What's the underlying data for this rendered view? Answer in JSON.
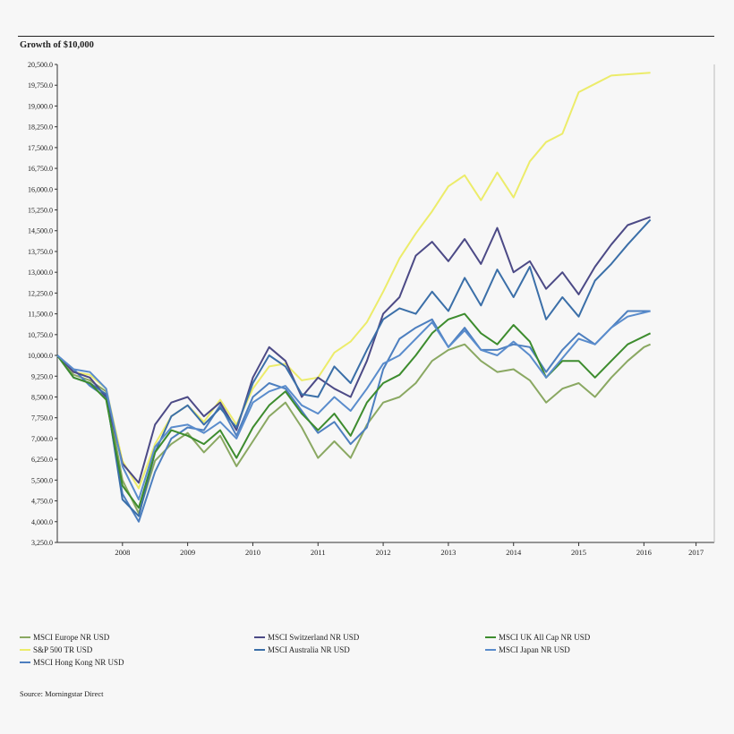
{
  "chart_data": {
    "type": "line",
    "title": "Growth of $10,000",
    "source": "Source: Morningstar Direct",
    "ylim": [
      3250,
      20500
    ],
    "yticks": [
      3250,
      4000,
      4750,
      5500,
      6250,
      7000,
      7750,
      8500,
      9250,
      10000,
      10750,
      11500,
      12250,
      13000,
      13750,
      14500,
      15250,
      16000,
      16750,
      17500,
      18250,
      19000,
      19750,
      20500
    ],
    "ytick_labels": [
      "3,250.0",
      "4,000.0",
      "4,750.0",
      "5,500.0",
      "6,250.0",
      "7,000.0",
      "7,750.0",
      "8,500.0",
      "9,250.0",
      "10,000.0",
      "10,750.0",
      "11,500.0",
      "12,250.0",
      "13,000.0",
      "13,750.0",
      "14,500.0",
      "15,250.0",
      "16,000.0",
      "16,750.0",
      "17,500.0",
      "18,250.0",
      "19,000.0",
      "19,750.0",
      "20,500.0"
    ],
    "xlim": [
      2007.0,
      2017.08
    ],
    "xticks": [
      {
        "label": "2008",
        "x": 2008.0
      },
      {
        "label": "2009",
        "x": 2009.0
      },
      {
        "label": "2010",
        "x": 2010.0
      },
      {
        "label": "2011",
        "x": 2011.0
      },
      {
        "label": "2012",
        "x": 2012.0
      },
      {
        "label": "2013",
        "x": 2013.0
      },
      {
        "label": "2014",
        "x": 2014.0
      },
      {
        "label": "2015",
        "x": 2015.0
      },
      {
        "label": "2016",
        "x": 2016.0
      },
      {
        "label": "2017",
        "x": 2016.8
      }
    ],
    "grid": false,
    "legend_placement": "bottom",
    "series": [
      {
        "name": "MSCI Europe NR USD",
        "color": "#8aa862",
        "points": [
          [
            2007.0,
            10000
          ],
          [
            2007.25,
            9300
          ],
          [
            2007.5,
            9100
          ],
          [
            2007.75,
            8700
          ],
          [
            2008.0,
            5500
          ],
          [
            2008.25,
            4300
          ],
          [
            2008.5,
            6200
          ],
          [
            2008.75,
            6800
          ],
          [
            2009.0,
            7200
          ],
          [
            2009.25,
            6500
          ],
          [
            2009.5,
            7100
          ],
          [
            2009.75,
            6000
          ],
          [
            2010.0,
            6900
          ],
          [
            2010.25,
            7800
          ],
          [
            2010.5,
            8300
          ],
          [
            2010.75,
            7400
          ],
          [
            2011.0,
            6300
          ],
          [
            2011.25,
            6900
          ],
          [
            2011.5,
            6300
          ],
          [
            2011.75,
            7500
          ],
          [
            2012.0,
            8300
          ],
          [
            2012.25,
            8500
          ],
          [
            2012.5,
            9000
          ],
          [
            2012.75,
            9800
          ],
          [
            2013.0,
            10200
          ],
          [
            2013.25,
            10400
          ],
          [
            2013.5,
            9800
          ],
          [
            2013.75,
            9400
          ],
          [
            2014.0,
            9500
          ],
          [
            2014.25,
            9100
          ],
          [
            2014.5,
            8300
          ],
          [
            2014.75,
            8800
          ],
          [
            2015.0,
            9000
          ],
          [
            2015.25,
            8500
          ],
          [
            2015.5,
            9200
          ],
          [
            2015.75,
            9800
          ],
          [
            2016.0,
            10300
          ],
          [
            2016.1,
            10400
          ]
        ]
      },
      {
        "name": "S&P 500 TR USD",
        "color": "#ecec6a",
        "points": [
          [
            2007.0,
            10000
          ],
          [
            2007.25,
            9400
          ],
          [
            2007.5,
            9300
          ],
          [
            2007.75,
            8800
          ],
          [
            2008.0,
            6200
          ],
          [
            2008.25,
            5200
          ],
          [
            2008.5,
            6800
          ],
          [
            2008.75,
            7800
          ],
          [
            2009.0,
            8200
          ],
          [
            2009.25,
            7600
          ],
          [
            2009.5,
            8400
          ],
          [
            2009.75,
            7500
          ],
          [
            2010.0,
            8800
          ],
          [
            2010.25,
            9600
          ],
          [
            2010.5,
            9700
          ],
          [
            2010.75,
            9100
          ],
          [
            2011.0,
            9200
          ],
          [
            2011.25,
            10100
          ],
          [
            2011.5,
            10500
          ],
          [
            2011.75,
            11200
          ],
          [
            2012.0,
            12300
          ],
          [
            2012.25,
            13500
          ],
          [
            2012.5,
            14400
          ],
          [
            2012.75,
            15200
          ],
          [
            2013.0,
            16100
          ],
          [
            2013.25,
            16500
          ],
          [
            2013.5,
            15600
          ],
          [
            2013.75,
            16600
          ],
          [
            2014.0,
            15700
          ],
          [
            2014.25,
            17000
          ],
          [
            2014.5,
            17700
          ],
          [
            2014.75,
            18000
          ],
          [
            2015.0,
            19500
          ],
          [
            2015.25,
            19800
          ],
          [
            2015.5,
            20100
          ],
          [
            2016.1,
            20200
          ]
        ]
      },
      {
        "name": "MSCI Hong Kong NR USD",
        "color": "#4d7fbf",
        "points": [
          [
            2007.0,
            10000
          ],
          [
            2007.25,
            9500
          ],
          [
            2007.5,
            8900
          ],
          [
            2007.75,
            8500
          ],
          [
            2008.0,
            5000
          ],
          [
            2008.25,
            4000
          ],
          [
            2008.5,
            5800
          ],
          [
            2008.75,
            7000
          ],
          [
            2009.0,
            7400
          ],
          [
            2009.25,
            7300
          ],
          [
            2009.5,
            8200
          ],
          [
            2009.75,
            7100
          ],
          [
            2010.0,
            8500
          ],
          [
            2010.25,
            9000
          ],
          [
            2010.5,
            8800
          ],
          [
            2010.75,
            8000
          ],
          [
            2011.0,
            7200
          ],
          [
            2011.25,
            7600
          ],
          [
            2011.5,
            6800
          ],
          [
            2011.75,
            7400
          ],
          [
            2012.0,
            9500
          ],
          [
            2012.25,
            10600
          ],
          [
            2012.5,
            11000
          ],
          [
            2012.75,
            11300
          ],
          [
            2013.0,
            10300
          ],
          [
            2013.25,
            11000
          ],
          [
            2013.5,
            10200
          ],
          [
            2013.75,
            10200
          ],
          [
            2014.0,
            10400
          ],
          [
            2014.25,
            10300
          ],
          [
            2014.5,
            9400
          ],
          [
            2014.75,
            10200
          ],
          [
            2015.0,
            10800
          ],
          [
            2015.25,
            10400
          ],
          [
            2015.5,
            11000
          ],
          [
            2015.75,
            11600
          ],
          [
            2016.1,
            11600
          ]
        ]
      },
      {
        "name": "MSCI Switzerland NR USD",
        "color": "#4c4a86",
        "points": [
          [
            2007.0,
            10000
          ],
          [
            2007.25,
            9400
          ],
          [
            2007.5,
            9200
          ],
          [
            2007.75,
            8500
          ],
          [
            2008.0,
            6100
          ],
          [
            2008.25,
            5400
          ],
          [
            2008.5,
            7500
          ],
          [
            2008.75,
            8300
          ],
          [
            2009.0,
            8500
          ],
          [
            2009.25,
            7800
          ],
          [
            2009.5,
            8300
          ],
          [
            2009.75,
            7300
          ],
          [
            2010.0,
            9200
          ],
          [
            2010.25,
            10300
          ],
          [
            2010.5,
            9800
          ],
          [
            2010.75,
            8500
          ],
          [
            2011.0,
            9200
          ],
          [
            2011.25,
            8800
          ],
          [
            2011.5,
            8500
          ],
          [
            2011.75,
            9800
          ],
          [
            2012.0,
            11500
          ],
          [
            2012.25,
            12100
          ],
          [
            2012.5,
            13600
          ],
          [
            2012.75,
            14100
          ],
          [
            2013.0,
            13400
          ],
          [
            2013.25,
            14200
          ],
          [
            2013.5,
            13300
          ],
          [
            2013.75,
            14600
          ],
          [
            2014.0,
            13000
          ],
          [
            2014.25,
            13400
          ],
          [
            2014.5,
            12400
          ],
          [
            2014.75,
            13000
          ],
          [
            2015.0,
            12200
          ],
          [
            2015.25,
            13200
          ],
          [
            2015.5,
            14000
          ],
          [
            2015.75,
            14700
          ],
          [
            2016.1,
            15000
          ]
        ]
      },
      {
        "name": "MSCI Australia NR USD",
        "color": "#3b6fa8",
        "points": [
          [
            2007.0,
            10000
          ],
          [
            2007.25,
            9200
          ],
          [
            2007.5,
            9000
          ],
          [
            2007.75,
            8600
          ],
          [
            2008.0,
            4800
          ],
          [
            2008.25,
            4200
          ],
          [
            2008.5,
            6500
          ],
          [
            2008.75,
            7800
          ],
          [
            2009.0,
            8200
          ],
          [
            2009.25,
            7500
          ],
          [
            2009.5,
            8100
          ],
          [
            2009.75,
            7400
          ],
          [
            2010.0,
            9000
          ],
          [
            2010.25,
            10000
          ],
          [
            2010.5,
            9600
          ],
          [
            2010.75,
            8600
          ],
          [
            2011.0,
            8500
          ],
          [
            2011.25,
            9600
          ],
          [
            2011.5,
            9000
          ],
          [
            2011.75,
            10200
          ],
          [
            2012.0,
            11300
          ],
          [
            2012.25,
            11700
          ],
          [
            2012.5,
            11500
          ],
          [
            2012.75,
            12300
          ],
          [
            2013.0,
            11600
          ],
          [
            2013.25,
            12800
          ],
          [
            2013.5,
            11800
          ],
          [
            2013.75,
            13100
          ],
          [
            2014.0,
            12100
          ],
          [
            2014.25,
            13200
          ],
          [
            2014.5,
            11300
          ],
          [
            2014.75,
            12100
          ],
          [
            2015.0,
            11400
          ],
          [
            2015.25,
            12700
          ],
          [
            2015.5,
            13300
          ],
          [
            2015.75,
            14000
          ],
          [
            2016.1,
            14900
          ]
        ]
      },
      {
        "name": "MSCI UK All Cap NR USD",
        "color": "#3d8c2e",
        "points": [
          [
            2007.0,
            10000
          ],
          [
            2007.25,
            9200
          ],
          [
            2007.5,
            9000
          ],
          [
            2007.75,
            8400
          ],
          [
            2008.0,
            5300
          ],
          [
            2008.25,
            4500
          ],
          [
            2008.5,
            6500
          ],
          [
            2008.75,
            7300
          ],
          [
            2009.0,
            7100
          ],
          [
            2009.25,
            6800
          ],
          [
            2009.5,
            7300
          ],
          [
            2009.75,
            6300
          ],
          [
            2010.0,
            7400
          ],
          [
            2010.25,
            8200
          ],
          [
            2010.5,
            8700
          ],
          [
            2010.75,
            7900
          ],
          [
            2011.0,
            7300
          ],
          [
            2011.25,
            7900
          ],
          [
            2011.5,
            7100
          ],
          [
            2011.75,
            8300
          ],
          [
            2012.0,
            9000
          ],
          [
            2012.25,
            9300
          ],
          [
            2012.5,
            10000
          ],
          [
            2012.75,
            10800
          ],
          [
            2013.0,
            11300
          ],
          [
            2013.25,
            11500
          ],
          [
            2013.5,
            10800
          ],
          [
            2013.75,
            10400
          ],
          [
            2014.0,
            11100
          ],
          [
            2014.25,
            10500
          ],
          [
            2014.5,
            9200
          ],
          [
            2014.75,
            9800
          ],
          [
            2015.0,
            9800
          ],
          [
            2015.25,
            9200
          ],
          [
            2015.5,
            9800
          ],
          [
            2015.75,
            10400
          ],
          [
            2016.1,
            10800
          ]
        ]
      },
      {
        "name": "MSCI Japan NR USD",
        "color": "#5a8ccc",
        "points": [
          [
            2007.0,
            10000
          ],
          [
            2007.25,
            9500
          ],
          [
            2007.5,
            9400
          ],
          [
            2007.75,
            8800
          ],
          [
            2008.0,
            6000
          ],
          [
            2008.25,
            4800
          ],
          [
            2008.5,
            6700
          ],
          [
            2008.75,
            7400
          ],
          [
            2009.0,
            7500
          ],
          [
            2009.25,
            7200
          ],
          [
            2009.5,
            7600
          ],
          [
            2009.75,
            7000
          ],
          [
            2010.0,
            8300
          ],
          [
            2010.25,
            8700
          ],
          [
            2010.5,
            8900
          ],
          [
            2010.75,
            8200
          ],
          [
            2011.0,
            7900
          ],
          [
            2011.25,
            8500
          ],
          [
            2011.5,
            8000
          ],
          [
            2011.75,
            8800
          ],
          [
            2012.0,
            9700
          ],
          [
            2012.25,
            10000
          ],
          [
            2012.5,
            10600
          ],
          [
            2012.75,
            11200
          ],
          [
            2013.0,
            10300
          ],
          [
            2013.25,
            10900
          ],
          [
            2013.5,
            10200
          ],
          [
            2013.75,
            10000
          ],
          [
            2014.0,
            10500
          ],
          [
            2014.25,
            10000
          ],
          [
            2014.5,
            9200
          ],
          [
            2014.75,
            9900
          ],
          [
            2015.0,
            10600
          ],
          [
            2015.25,
            10400
          ],
          [
            2015.5,
            11000
          ],
          [
            2015.75,
            11400
          ],
          [
            2016.1,
            11600
          ]
        ]
      }
    ]
  },
  "legend": [
    {
      "label": "MSCI Europe NR USD",
      "color": "#8aa862"
    },
    {
      "label": "MSCI Switzerland NR USD",
      "color": "#4c4a86"
    },
    {
      "label": "MSCI UK All Cap NR USD",
      "color": "#3d8c2e"
    },
    {
      "label": "S&P 500 TR USD",
      "color": "#ecec6a"
    },
    {
      "label": "MSCI Australia NR USD",
      "color": "#3b6fa8"
    },
    {
      "label": "MSCI Japan NR USD",
      "color": "#5a8ccc"
    },
    {
      "label": "MSCI Hong Kong NR USD",
      "color": "#4d7fbf"
    }
  ]
}
